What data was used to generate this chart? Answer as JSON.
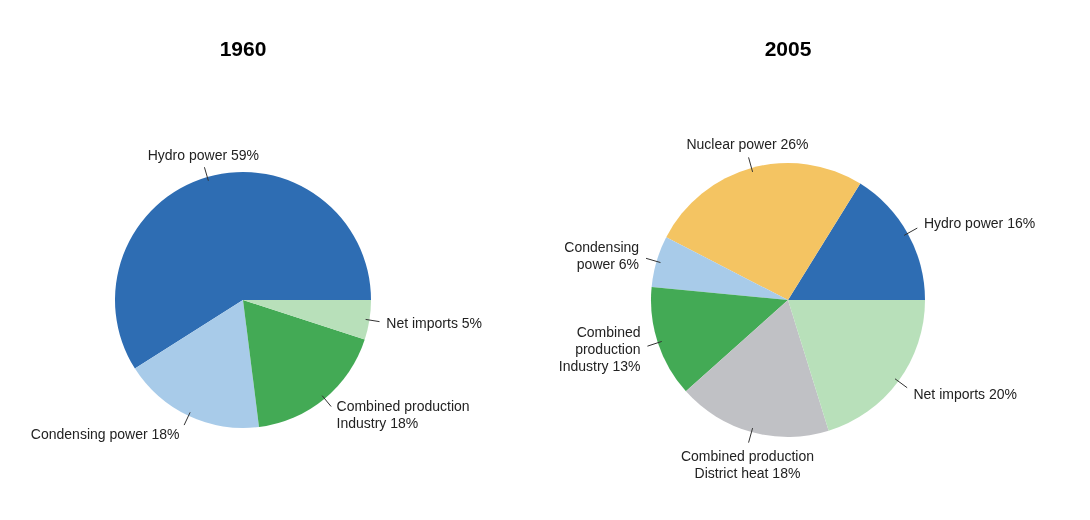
{
  "chart_data": [
    {
      "type": "pie",
      "title": "1960",
      "categories": [
        "Hydro power",
        "Condensing power",
        "Combined production Industry",
        "Net imports"
      ],
      "values": [
        59,
        18,
        18,
        5
      ],
      "colors": [
        "#2e6db3",
        "#a8cbe9",
        "#43aa55",
        "#b8e0ba"
      ],
      "value_labels": [
        "59%",
        "18%",
        "18%",
        "5%"
      ]
    },
    {
      "type": "pie",
      "title": "2005",
      "categories": [
        "Hydro power",
        "Nuclear power",
        "Condensing power",
        "Combined production Industry",
        "Combined production District heat",
        "Net imports"
      ],
      "values": [
        16,
        26,
        6,
        13,
        18,
        20
      ],
      "colors": [
        "#2e6db3",
        "#f4c462",
        "#a8cbe9",
        "#43aa55",
        "#c0c1c5",
        "#b8e0ba"
      ],
      "value_labels": [
        "16%",
        "26%",
        "6%",
        "13%",
        "18%",
        "20%"
      ]
    }
  ]
}
